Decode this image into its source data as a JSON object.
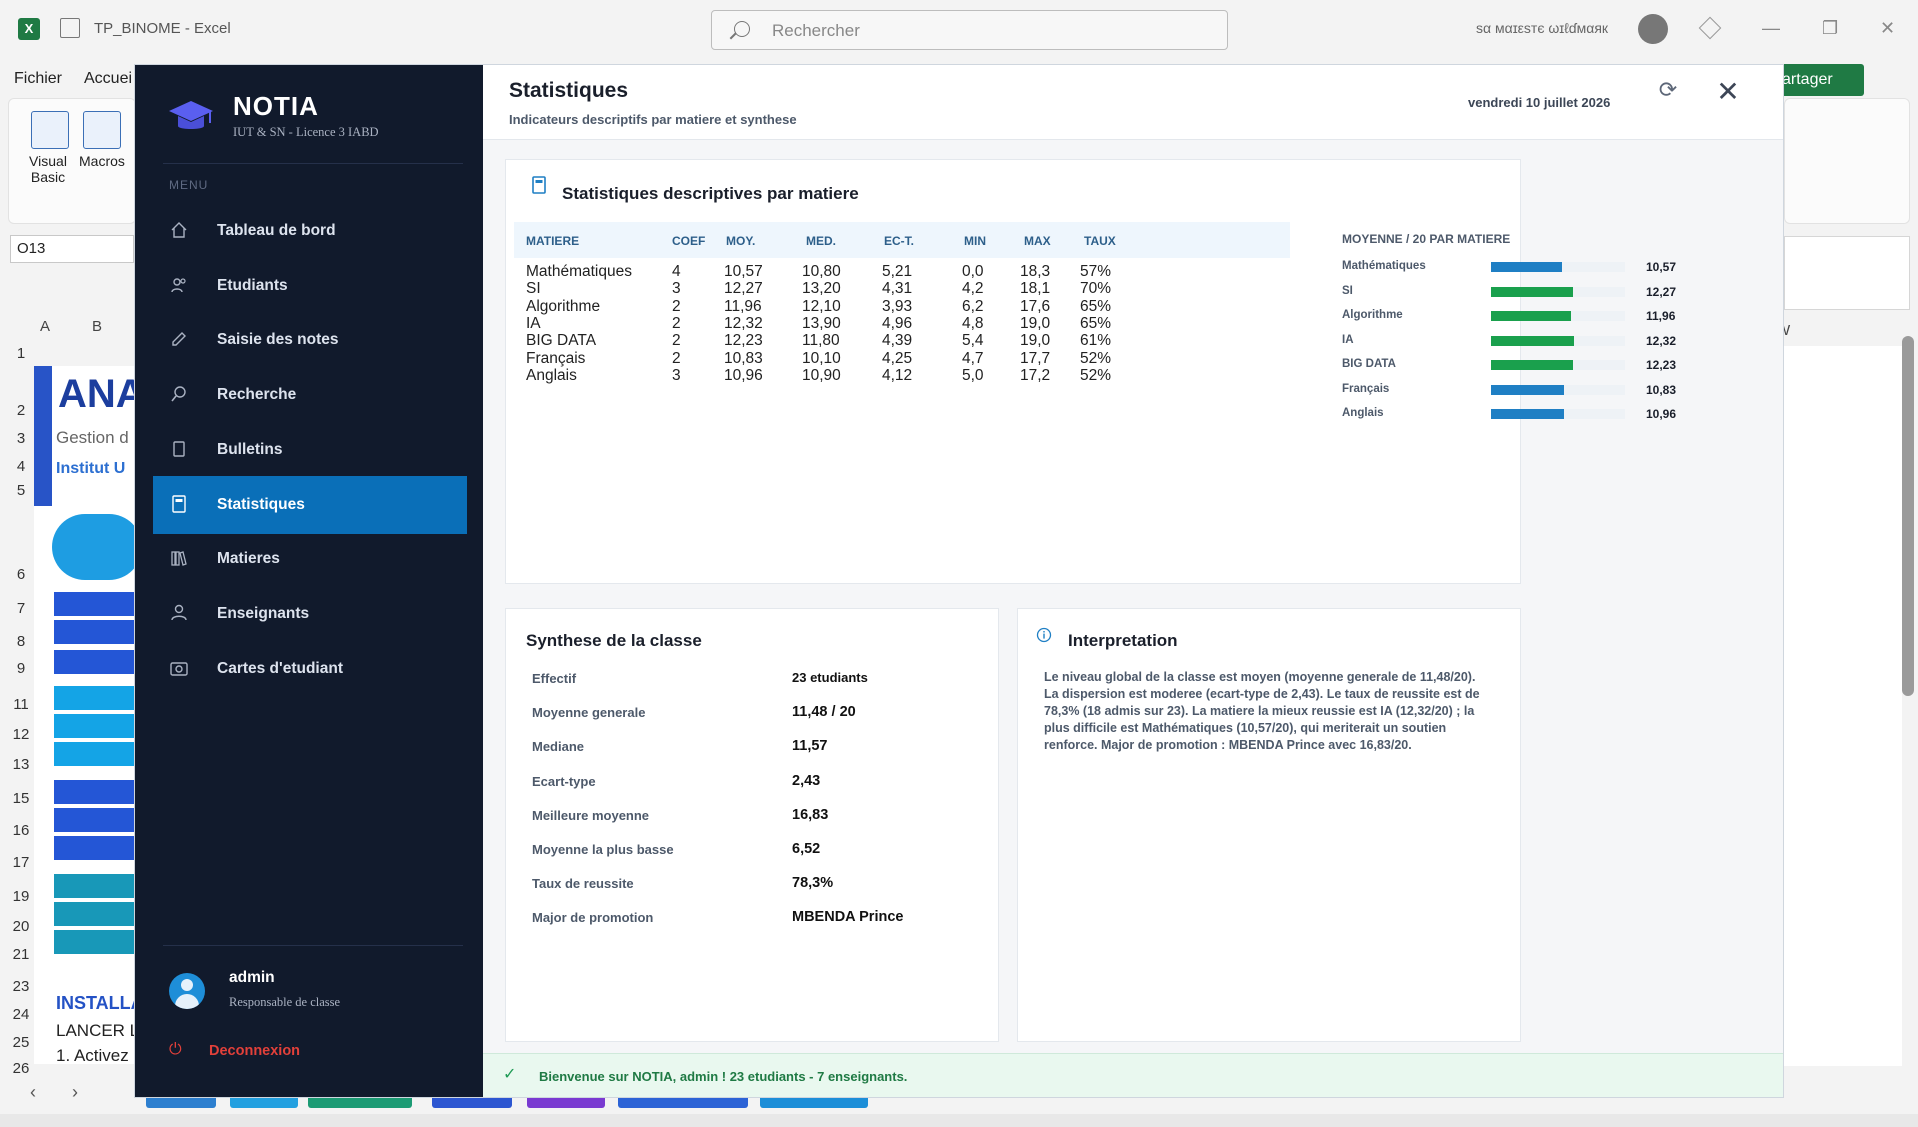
{
  "excel": {
    "doc_title": "TP_BINOME",
    "app_name": "Excel",
    "search_placeholder": "Rechercher",
    "user_name": "sα мαɪεsтє ωɪℓɗмαяк",
    "menu": {
      "fichier": "Fichier",
      "accueil": "Accuei"
    },
    "ribbon": {
      "visual_basic": "Visual Basic",
      "macros": "Macros"
    },
    "namebox": "O13",
    "col_a": "A",
    "col_b": "B",
    "col_w": "W",
    "row_numbers": [
      "1",
      "2",
      "3",
      "4",
      "5",
      "6",
      "7",
      "8",
      "9",
      "11",
      "12",
      "13",
      "15",
      "16",
      "17",
      "19",
      "20",
      "21",
      "23",
      "24",
      "25",
      "26"
    ],
    "partager": "artager",
    "sheet_ana": "ANA",
    "sheet_gestion": "Gestion d",
    "sheet_institut": "Institut U",
    "sheet_install": "INSTALLA",
    "sheet_lancer": "LANCER L",
    "sheet_activez": "1.  Activez"
  },
  "app": {
    "brand": "NOTIA",
    "subtitle": "IUT & SN - Licence 3 IABD",
    "menu_label": "MENU",
    "nav": [
      {
        "label": "Tableau de bord",
        "icon": "home-icon"
      },
      {
        "label": "Etudiants",
        "icon": "users-icon"
      },
      {
        "label": "Saisie des notes",
        "icon": "pencil-icon"
      },
      {
        "label": "Recherche",
        "icon": "search-icon"
      },
      {
        "label": "Bulletins",
        "icon": "document-icon"
      },
      {
        "label": "Statistiques",
        "icon": "calculator-icon",
        "active": true
      },
      {
        "label": "Matieres",
        "icon": "books-icon"
      },
      {
        "label": "Enseignants",
        "icon": "person-icon"
      },
      {
        "label": "Cartes d'etudiant",
        "icon": "camera-icon"
      }
    ],
    "user": {
      "name": "admin",
      "role": "Responsable de classe"
    },
    "logout": "Deconnexion"
  },
  "page": {
    "title": "Statistiques",
    "subtitle": "Indicateurs descriptifs par matiere et synthese",
    "date": "vendredi 10 juillet 2026"
  },
  "stats": {
    "title": "Statistiques descriptives par matiere",
    "columns": [
      "MATIERE",
      "COEF",
      "MOY.",
      "MED.",
      "EC-T.",
      "MIN",
      "MAX",
      "TAUX"
    ],
    "rows": [
      [
        "Mathématiques",
        "4",
        "10,57",
        "10,80",
        "5,21",
        "0,0",
        "18,3",
        "57%"
      ],
      [
        "SI",
        "3",
        "12,27",
        "13,20",
        "4,31",
        "4,2",
        "18,1",
        "70%"
      ],
      [
        "Algorithme",
        "2",
        "11,96",
        "12,10",
        "3,93",
        "6,2",
        "17,6",
        "65%"
      ],
      [
        "IA",
        "2",
        "12,32",
        "13,90",
        "4,96",
        "4,8",
        "19,0",
        "65%"
      ],
      [
        "BIG DATA",
        "2",
        "12,23",
        "11,80",
        "4,39",
        "5,4",
        "19,0",
        "61%"
      ],
      [
        "Français",
        "2",
        "10,83",
        "10,10",
        "4,25",
        "4,7",
        "17,7",
        "52%"
      ],
      [
        "Anglais",
        "3",
        "10,96",
        "10,90",
        "4,12",
        "5,0",
        "17,2",
        "52%"
      ]
    ],
    "bars_title": "MOYENNE / 20 PAR MATIERE",
    "colors": {
      "below": "#1f7fc4",
      "above": "#1aa04d"
    }
  },
  "chart_data": {
    "type": "bar",
    "title": "MOYENNE / 20 PAR MATIERE",
    "categories": [
      "Mathématiques",
      "SI",
      "Algorithme",
      "IA",
      "BIG DATA",
      "Français",
      "Anglais"
    ],
    "values": [
      10.57,
      12.27,
      11.96,
      12.32,
      12.23,
      10.83,
      10.96
    ],
    "value_labels": [
      "10,57",
      "12,27",
      "11,96",
      "12,32",
      "12,23",
      "10,83",
      "10,96"
    ],
    "xlim": [
      0,
      20
    ],
    "orientation": "horizontal"
  },
  "synthese": {
    "title": "Synthese de la classe",
    "items": [
      {
        "label": "Effectif",
        "value": "23 etudiants"
      },
      {
        "label": "Moyenne generale",
        "value": "11,48 / 20"
      },
      {
        "label": "Mediane",
        "value": "11,57"
      },
      {
        "label": "Ecart-type",
        "value": "2,43"
      },
      {
        "label": "Meilleure moyenne",
        "value": "16,83"
      },
      {
        "label": "Moyenne la plus basse",
        "value": "6,52"
      },
      {
        "label": "Taux de reussite",
        "value": "78,3%"
      },
      {
        "label": "Major de promotion",
        "value": "MBENDA Prince"
      }
    ]
  },
  "interpretation": {
    "title": "Interpretation",
    "text": "Le niveau global de la classe est moyen (moyenne generale de 11,48/20). La dispersion est moderee (ecart-type de 2,43). Le taux de reussite est de 78,3% (18 admis sur 23). La matiere la mieux reussie est IA (12,32/20) ; la plus difficile est Mathématiques (10,57/20), qui meriterait un soutien renforce. Major de promotion : MBENDA Prince avec 16,83/20."
  },
  "toast": "Bienvenue sur NOTIA, admin ! 23 etudiants - 7 enseignants."
}
